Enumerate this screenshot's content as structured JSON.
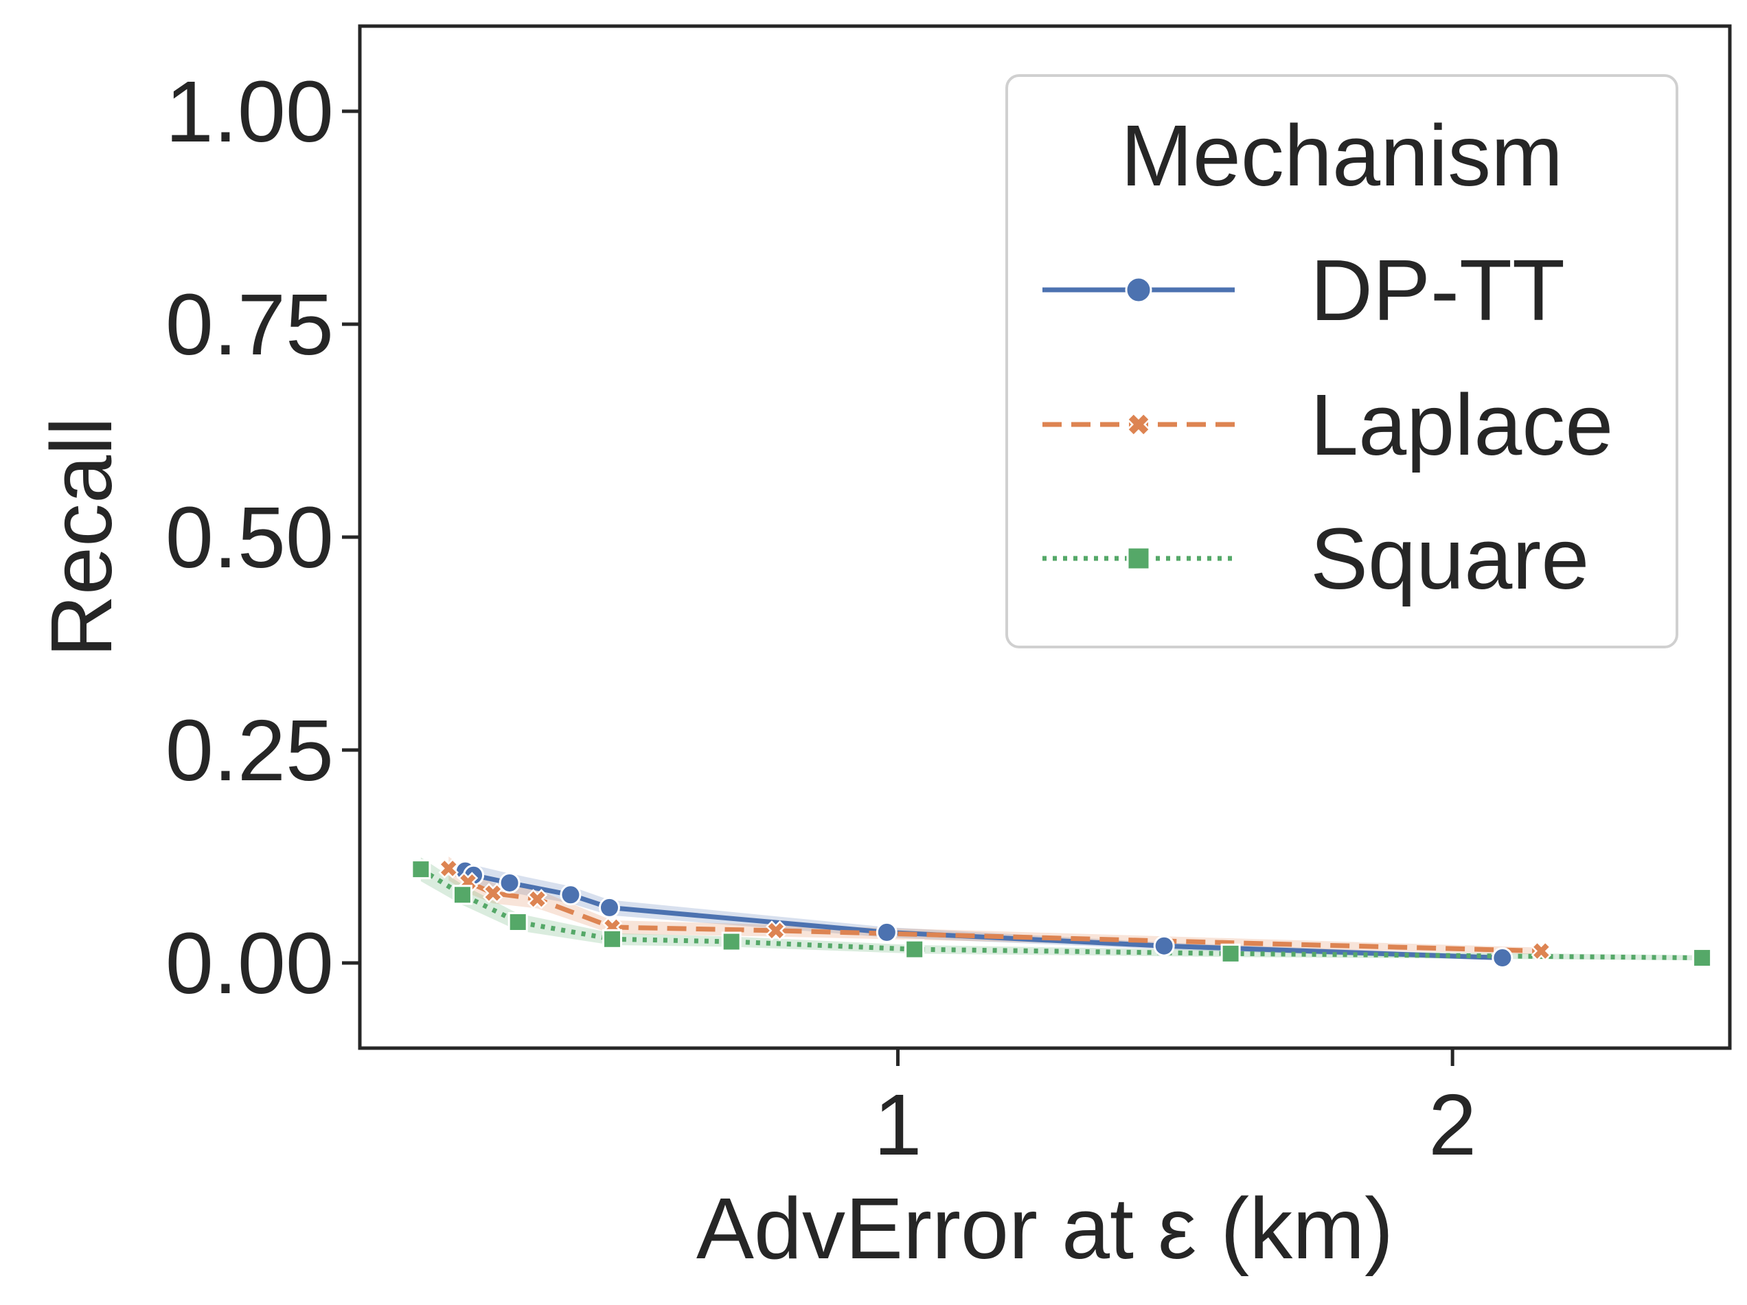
{
  "chart_data": {
    "type": "line",
    "title": "",
    "xlabel": "AdvError at ε (km)",
    "ylabel": "Recall",
    "xlim": [
      0.03,
      2.5
    ],
    "ylim": [
      -0.1,
      1.1
    ],
    "x_ticks": [
      1,
      2
    ],
    "x_tick_labels": [
      "1",
      "2"
    ],
    "y_ticks": [
      0.0,
      0.25,
      0.5,
      0.75,
      1.0
    ],
    "y_tick_labels": [
      "0.00",
      "0.25",
      "0.50",
      "0.75",
      "1.00"
    ],
    "grid": false,
    "legend": {
      "title": "Mechanism",
      "placement": "top-right"
    },
    "series": [
      {
        "name": "DP-TT",
        "color": "#4c72b0",
        "line_style": "solid",
        "marker": "circle",
        "x": [
          0.22,
          0.235,
          0.3,
          0.41,
          0.48,
          0.98,
          1.48,
          2.09
        ],
        "y": [
          0.108,
          0.103,
          0.094,
          0.08,
          0.065,
          0.036,
          0.02,
          0.006
        ],
        "band_halfwidth": [
          0.012,
          0.012,
          0.011,
          0.01,
          0.009,
          0.006,
          0.004,
          0.003
        ]
      },
      {
        "name": "Laplace",
        "color": "#dd8452",
        "line_style": "dashed",
        "marker": "x",
        "x": [
          0.19,
          0.225,
          0.27,
          0.35,
          0.485,
          0.78,
          2.16
        ],
        "y": [
          0.111,
          0.095,
          0.082,
          0.075,
          0.042,
          0.038,
          0.014
        ],
        "band_halfwidth": [
          0.014,
          0.013,
          0.012,
          0.011,
          0.008,
          0.007,
          0.004
        ]
      },
      {
        "name": "Square",
        "color": "#55a868",
        "line_style": "dotted",
        "marker": "square",
        "x": [
          0.14,
          0.215,
          0.315,
          0.485,
          0.7,
          1.03,
          1.6,
          2.45
        ],
        "y": [
          0.11,
          0.08,
          0.048,
          0.028,
          0.025,
          0.016,
          0.011,
          0.006
        ],
        "band_halfwidth": [
          0.014,
          0.012,
          0.01,
          0.007,
          0.006,
          0.005,
          0.004,
          0.003
        ]
      }
    ]
  }
}
